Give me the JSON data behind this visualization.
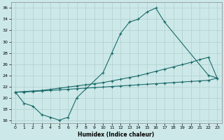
{
  "xlabel": "Humidex (Indice chaleur)",
  "bg_color": "#cde8e8",
  "line_color": "#1a6b6b",
  "xlim": [
    -0.5,
    23.5
  ],
  "ylim": [
    15.5,
    37
  ],
  "xtick_labels": [
    "0",
    "1",
    "2",
    "3",
    "4",
    "5",
    "6",
    "7",
    "8",
    "9",
    "10",
    "11",
    "12",
    "13",
    "14",
    "15",
    "16",
    "17",
    "18",
    "19",
    "20",
    "21",
    "22",
    "23"
  ],
  "xtick_vals": [
    0,
    1,
    2,
    3,
    4,
    5,
    6,
    7,
    8,
    9,
    10,
    11,
    12,
    13,
    14,
    15,
    16,
    17,
    18,
    19,
    20,
    21,
    22,
    23
  ],
  "ytick_vals": [
    16,
    18,
    20,
    22,
    24,
    26,
    28,
    30,
    32,
    34,
    36
  ],
  "ytick_labels": [
    "16",
    "18",
    "20",
    "22",
    "24",
    "26",
    "28",
    "30",
    "32",
    "34",
    "36"
  ],
  "line1_x": [
    0,
    1,
    2,
    3,
    4,
    5,
    6,
    7,
    10,
    11,
    12,
    13,
    14,
    15,
    16,
    17,
    22,
    23
  ],
  "line1_y": [
    21,
    19,
    18.5,
    17,
    16.5,
    16,
    16.5,
    20,
    24.5,
    28,
    31.5,
    33.5,
    34,
    35.3,
    36,
    33.5,
    24,
    23.5
  ],
  "line2_x": [
    0,
    1,
    2,
    3,
    4,
    5,
    6,
    7,
    8,
    9,
    10,
    11,
    12,
    13,
    14,
    15,
    16,
    17,
    18,
    19,
    20,
    21,
    22,
    23
  ],
  "line2_y": [
    21,
    21.1,
    21.2,
    21.3,
    21.5,
    21.7,
    21.9,
    22.1,
    22.3,
    22.5,
    22.7,
    23.0,
    23.3,
    23.6,
    23.9,
    24.3,
    24.7,
    25.1,
    25.5,
    25.9,
    26.3,
    26.8,
    27.2,
    23.5
  ],
  "line3_x": [
    0,
    1,
    2,
    3,
    4,
    5,
    6,
    7,
    8,
    9,
    10,
    11,
    12,
    13,
    14,
    15,
    16,
    17,
    18,
    19,
    20,
    21,
    22,
    23
  ],
  "line3_y": [
    21,
    21.0,
    21.1,
    21.2,
    21.3,
    21.4,
    21.5,
    21.6,
    21.7,
    21.8,
    21.9,
    22.0,
    22.1,
    22.2,
    22.3,
    22.4,
    22.5,
    22.6,
    22.7,
    22.8,
    22.9,
    23.0,
    23.1,
    23.5
  ],
  "grid_color": "#b0cfcf",
  "marker": "+"
}
